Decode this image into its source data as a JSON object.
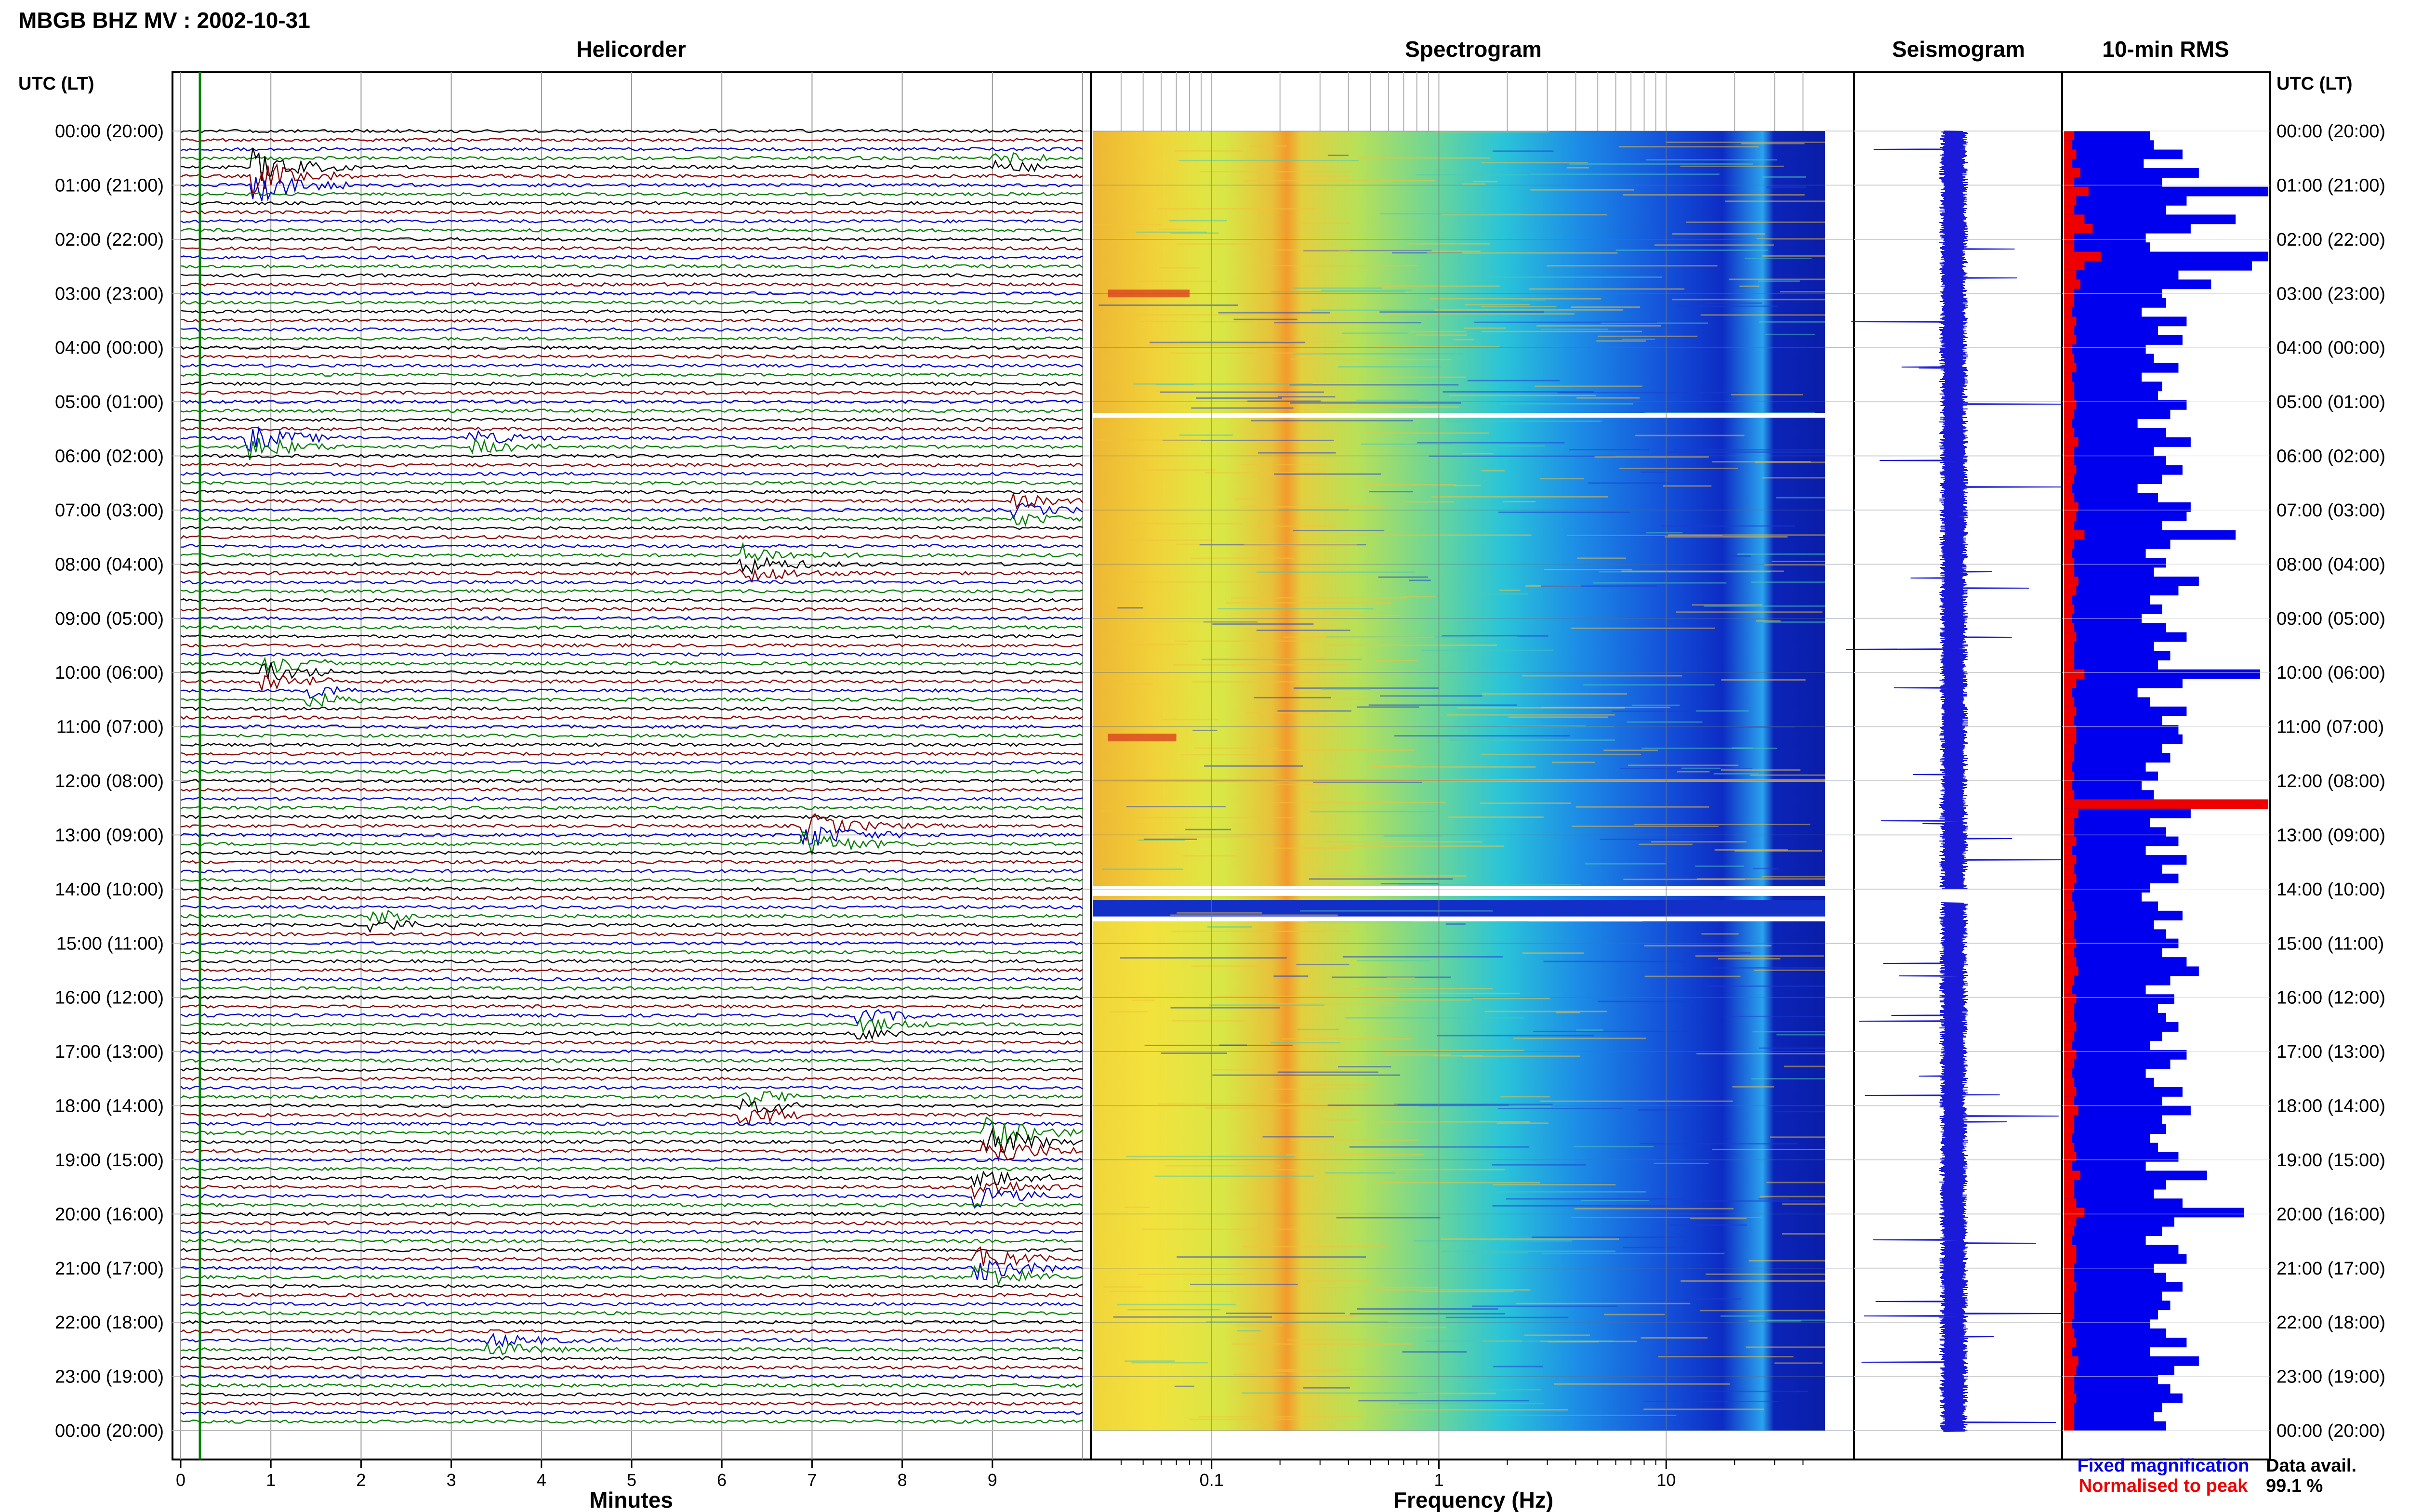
{
  "title": "MBGB BHZ MV : 2002-10-31",
  "panels": {
    "helicorder": "Helicorder",
    "spectrogram": "Spectrogram",
    "seismogram": "Seismogram",
    "rms": "10-min RMS"
  },
  "time_axis_label": "UTC (LT)",
  "time_labels": [
    "00:00 (20:00)",
    "01:00 (21:00)",
    "02:00 (22:00)",
    "03:00 (23:00)",
    "04:00 (00:00)",
    "05:00 (01:00)",
    "06:00 (02:00)",
    "07:00 (03:00)",
    "08:00 (04:00)",
    "09:00 (05:00)",
    "10:00 (06:00)",
    "11:00 (07:00)",
    "12:00 (08:00)",
    "13:00 (09:00)",
    "14:00 (10:00)",
    "15:00 (11:00)",
    "16:00 (12:00)",
    "17:00 (13:00)",
    "18:00 (14:00)",
    "19:00 (15:00)",
    "20:00 (16:00)",
    "21:00 (17:00)",
    "22:00 (18:00)",
    "23:00 (19:00)",
    "00:00 (20:00)"
  ],
  "legend": {
    "fixed": "Fixed magnification",
    "normalised": "Normalised to peak",
    "data_avail_label": "Data avail.",
    "data_avail_value": "99.1 %"
  },
  "colors": {
    "trace_cycle": [
      "#000000",
      "#8b0000",
      "#0000cc",
      "#007f00"
    ],
    "rms_fixed": "#0000ee",
    "rms_normalised": "#ee0000",
    "legend_fixed": "#0000ee",
    "legend_normalised": "#ee0000"
  },
  "chart_data": [
    {
      "type": "line",
      "name": "helicorder",
      "xlabel": "Minutes",
      "x_ticks": [
        "0",
        "1",
        "2",
        "3",
        "4",
        "5",
        "6",
        "7",
        "8",
        "9"
      ],
      "xlim": [
        0,
        10
      ],
      "rows_per_hour": 6,
      "hours": 24,
      "events": [
        {
          "hour": 0.8,
          "minute": 0.9,
          "duration": 1.0,
          "amp": 5
        },
        {
          "hour": 0.6,
          "minute": 9.1,
          "duration": 0.5,
          "amp": 2
        },
        {
          "hour": 5.8,
          "minute": 0.8,
          "duration": 1.0,
          "amp": 4
        },
        {
          "hour": 5.8,
          "minute": 3.3,
          "duration": 1.0,
          "amp": 2
        },
        {
          "hour": 7.0,
          "minute": 9.3,
          "duration": 1.0,
          "amp": 2
        },
        {
          "hour": 8.0,
          "minute": 6.3,
          "duration": 1.6,
          "amp": 3
        },
        {
          "hour": 10.0,
          "minute": 1.0,
          "duration": 0.7,
          "amp": 3
        },
        {
          "hour": 10.4,
          "minute": 1.5,
          "duration": 0.5,
          "amp": 2
        },
        {
          "hour": 13.0,
          "minute": 7.0,
          "duration": 1.5,
          "amp": 4
        },
        {
          "hour": 14.6,
          "minute": 2.2,
          "duration": 0.4,
          "amp": 2
        },
        {
          "hour": 16.5,
          "minute": 7.6,
          "duration": 0.8,
          "amp": 2
        },
        {
          "hour": 18.0,
          "minute": 6.3,
          "duration": 0.6,
          "amp": 3
        },
        {
          "hour": 18.7,
          "minute": 9.0,
          "duration": 1.5,
          "amp": 5
        },
        {
          "hour": 19.5,
          "minute": 8.9,
          "duration": 1.2,
          "amp": 3
        },
        {
          "hour": 21.0,
          "minute": 8.9,
          "duration": 0.8,
          "amp": 4
        },
        {
          "hour": 22.4,
          "minute": 3.5,
          "duration": 1.5,
          "amp": 2
        }
      ]
    },
    {
      "type": "heatmap",
      "name": "spectrogram",
      "xlabel": "Frequency (Hz)",
      "x_scale": "log",
      "x_ticks": [
        "0.1",
        "1",
        "10"
      ],
      "xlim": [
        0.03,
        50
      ],
      "peak_band_hz": 0.25,
      "high_freq_line_hz": 25,
      "data_gap_hours": [
        14.0,
        14.25
      ],
      "white_lines_hours": [
        5.25,
        14.55
      ]
    },
    {
      "type": "line",
      "name": "seismogram",
      "gap_hours": [
        14.0,
        14.25
      ]
    },
    {
      "type": "bar",
      "name": "10-min RMS",
      "series": [
        {
          "name": "Fixed magnification",
          "values": [
            0.42,
            0.44,
            0.58,
            0.39,
            0.66,
            0.48,
            1.0,
            0.6,
            0.5,
            0.84,
            0.62,
            0.4,
            0.42,
            1.0,
            0.92,
            0.56,
            0.72,
            0.48,
            0.5,
            0.38,
            0.6,
            0.46,
            0.58,
            0.4,
            0.44,
            0.56,
            0.38,
            0.48,
            0.46,
            0.6,
            0.52,
            0.36,
            0.5,
            0.62,
            0.44,
            0.5,
            0.58,
            0.48,
            0.36,
            0.46,
            0.62,
            0.6,
            0.48,
            0.84,
            0.52,
            0.4,
            0.5,
            0.44,
            0.66,
            0.56,
            0.42,
            0.48,
            0.38,
            0.5,
            0.6,
            0.44,
            0.52,
            0.46,
            0.96,
            0.58,
            0.36,
            0.42,
            0.6,
            0.48,
            0.56,
            0.58,
            0.48,
            0.52,
            0.4,
            0.46,
            0.38,
            0.44,
            1.0,
            0.62,
            0.42,
            0.5,
            0.56,
            0.4,
            0.6,
            0.48,
            0.56,
            0.42,
            0.38,
            0.46,
            0.58,
            0.44,
            0.5,
            0.56,
            0.48,
            0.6,
            0.66,
            0.52,
            0.4,
            0.54,
            0.46,
            0.5,
            0.56,
            0.48,
            0.42,
            0.6,
            0.52,
            0.4,
            0.44,
            0.58,
            0.48,
            0.62,
            0.48,
            0.5,
            0.42,
            0.46,
            0.56,
            0.4,
            0.7,
            0.5,
            0.44,
            0.58,
            0.88,
            0.54,
            0.48,
            0.4,
            0.56,
            0.6,
            0.44,
            0.5,
            0.58,
            0.48,
            0.52,
            0.46,
            0.42,
            0.5,
            0.6,
            0.42,
            0.66,
            0.54,
            0.46,
            0.52,
            0.58,
            0.48,
            0.44,
            0.5
          ]
        },
        {
          "name": "Normalised to peak",
          "values": [
            0.05,
            0.04,
            0.06,
            0.04,
            0.08,
            0.05,
            0.12,
            0.06,
            0.05,
            0.1,
            0.14,
            0.05,
            0.05,
            0.18,
            0.1,
            0.06,
            0.08,
            0.05,
            0.05,
            0.04,
            0.06,
            0.05,
            0.06,
            0.04,
            0.05,
            0.06,
            0.04,
            0.05,
            0.05,
            0.06,
            0.05,
            0.04,
            0.05,
            0.07,
            0.05,
            0.05,
            0.06,
            0.05,
            0.04,
            0.05,
            0.07,
            0.06,
            0.05,
            0.1,
            0.05,
            0.04,
            0.05,
            0.05,
            0.07,
            0.06,
            0.04,
            0.05,
            0.04,
            0.05,
            0.06,
            0.05,
            0.05,
            0.05,
            0.1,
            0.06,
            0.04,
            0.05,
            0.06,
            0.05,
            0.06,
            0.06,
            0.05,
            0.05,
            0.04,
            0.05,
            0.04,
            0.05,
            1.0,
            0.07,
            0.05,
            0.05,
            0.06,
            0.04,
            0.06,
            0.05,
            0.06,
            0.05,
            0.04,
            0.05,
            0.06,
            0.05,
            0.05,
            0.06,
            0.05,
            0.06,
            0.07,
            0.05,
            0.04,
            0.06,
            0.05,
            0.05,
            0.06,
            0.05,
            0.04,
            0.06,
            0.05,
            0.04,
            0.05,
            0.06,
            0.05,
            0.07,
            0.05,
            0.05,
            0.04,
            0.05,
            0.06,
            0.04,
            0.08,
            0.05,
            0.05,
            0.06,
            0.1,
            0.06,
            0.05,
            0.04,
            0.06,
            0.06,
            0.05,
            0.05,
            0.06,
            0.05,
            0.05,
            0.05,
            0.04,
            0.05,
            0.06,
            0.04,
            0.07,
            0.06,
            0.05,
            0.05,
            0.06,
            0.05,
            0.05,
            0.05
          ]
        }
      ]
    }
  ]
}
